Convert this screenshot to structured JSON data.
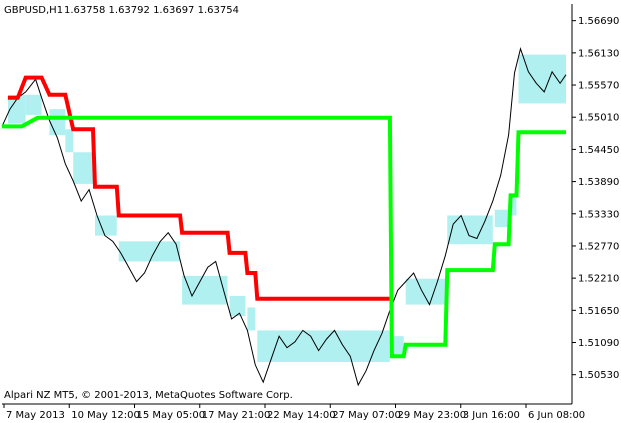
{
  "header": {
    "symbol": "GBPUSD,H1",
    "ohlc": "1.63758 1.63792 1.63697 1.63754"
  },
  "footer": {
    "copyright": "Alpari NZ MT5, © 2001-2013, MetaQuotes Software Corp."
  },
  "colors": {
    "price": "#000000",
    "upper_stop": "#ff0000",
    "lower_stop": "#00ff00",
    "range_fill": "#b0f0f0",
    "axis": "#000000"
  },
  "chart_data": {
    "type": "line",
    "y_ticks": [
      "1.56690",
      "1.56130",
      "1.55570",
      "1.55010",
      "1.54450",
      "1.53890",
      "1.53330",
      "1.52770",
      "1.52210",
      "1.51650",
      "1.51090",
      "1.50530"
    ],
    "x_ticks": [
      "7 May 2013",
      "10 May 12:00",
      "15 May 05:00",
      "17 May 21:00",
      "22 May 14:00",
      "27 May 07:00",
      "29 May 23:00",
      "3 Jun 16:00",
      "6 Jun 08:00"
    ],
    "ylim": [
      1.5002,
      1.5698
    ],
    "x_count": 286,
    "price_series": {
      "x": [
        0,
        4,
        8,
        12,
        17,
        20,
        24,
        28,
        32,
        36,
        40,
        44,
        48,
        52,
        56,
        60,
        64,
        68,
        72,
        76,
        80,
        84,
        88,
        92,
        96,
        100,
        104,
        108,
        112,
        116,
        120,
        124,
        128,
        132,
        136,
        140,
        144,
        148,
        152,
        156,
        160,
        164,
        168,
        172,
        176,
        180,
        184,
        188,
        192,
        196,
        200,
        204,
        208,
        212,
        216,
        220,
        224,
        228,
        232,
        236,
        240,
        244,
        248,
        252,
        256,
        259,
        262,
        266,
        270,
        274,
        278,
        282,
        285
      ],
      "y": [
        1.5485,
        1.5515,
        1.5535,
        1.5545,
        1.5567,
        1.5535,
        1.5495,
        1.5465,
        1.542,
        1.539,
        1.5355,
        1.5375,
        1.533,
        1.5295,
        1.5285,
        1.5265,
        1.524,
        1.5215,
        1.523,
        1.526,
        1.5285,
        1.53,
        1.528,
        1.5225,
        1.519,
        1.5215,
        1.524,
        1.525,
        1.52,
        1.515,
        1.516,
        1.513,
        1.507,
        1.504,
        1.508,
        1.512,
        1.51,
        1.511,
        1.513,
        1.512,
        1.5095,
        1.5115,
        1.513,
        1.5105,
        1.5085,
        1.5035,
        1.506,
        1.5095,
        1.5125,
        1.5165,
        1.52,
        1.5215,
        1.523,
        1.52,
        1.5175,
        1.5215,
        1.526,
        1.5315,
        1.533,
        1.5295,
        1.529,
        1.532,
        1.5355,
        1.54,
        1.547,
        1.5578,
        1.562,
        1.558,
        1.556,
        1.5545,
        1.558,
        1.556,
        1.5575
      ]
    },
    "upper_stop": {
      "x": [
        3,
        8,
        12,
        20,
        24,
        32,
        36,
        46,
        47,
        58,
        59,
        90,
        91,
        114,
        115,
        123,
        124,
        128,
        129,
        196
      ],
      "y": [
        1.5535,
        1.5535,
        1.557,
        1.557,
        1.554,
        1.554,
        1.548,
        1.548,
        1.538,
        1.538,
        1.533,
        1.533,
        1.53,
        1.53,
        1.5265,
        1.5265,
        1.523,
        1.523,
        1.5185,
        1.5185
      ]
    },
    "lower_stop": {
      "x": [
        0,
        10,
        18,
        196,
        197,
        203,
        204,
        224,
        225,
        248,
        249,
        256,
        257,
        260,
        261,
        285
      ],
      "y": [
        1.5485,
        1.5485,
        1.55,
        1.55,
        1.5085,
        1.5085,
        1.5105,
        1.5105,
        1.5235,
        1.5235,
        1.528,
        1.528,
        1.5365,
        1.5365,
        1.5475,
        1.5475
      ]
    },
    "ranges": [
      {
        "x0": 3,
        "x1": 12,
        "y0": 1.549,
        "y1": 1.554
      },
      {
        "x0": 12,
        "x1": 20,
        "y0": 1.5505,
        "y1": 1.554
      },
      {
        "x0": 24,
        "x1": 32,
        "y0": 1.547,
        "y1": 1.5515
      },
      {
        "x0": 32,
        "x1": 36,
        "y0": 1.544,
        "y1": 1.548
      },
      {
        "x0": 36,
        "x1": 46,
        "y0": 1.5385,
        "y1": 1.544
      },
      {
        "x0": 47,
        "x1": 58,
        "y0": 1.5295,
        "y1": 1.533
      },
      {
        "x0": 59,
        "x1": 90,
        "y0": 1.525,
        "y1": 1.5285
      },
      {
        "x0": 91,
        "x1": 114,
        "y0": 1.5175,
        "y1": 1.5225
      },
      {
        "x0": 115,
        "x1": 123,
        "y0": 1.5155,
        "y1": 1.519
      },
      {
        "x0": 124,
        "x1": 128,
        "y0": 1.513,
        "y1": 1.517
      },
      {
        "x0": 129,
        "x1": 196,
        "y0": 1.5075,
        "y1": 1.513
      },
      {
        "x0": 197,
        "x1": 203,
        "y0": 1.5085,
        "y1": 1.512
      },
      {
        "x0": 204,
        "x1": 224,
        "y0": 1.5175,
        "y1": 1.522
      },
      {
        "x0": 225,
        "x1": 248,
        "y0": 1.528,
        "y1": 1.533
      },
      {
        "x0": 249,
        "x1": 256,
        "y0": 1.531,
        "y1": 1.534
      },
      {
        "x0": 257,
        "x1": 260,
        "y0": 1.533,
        "y1": 1.5365
      },
      {
        "x0": 261,
        "x1": 285,
        "y0": 1.5525,
        "y1": 1.561
      }
    ]
  }
}
